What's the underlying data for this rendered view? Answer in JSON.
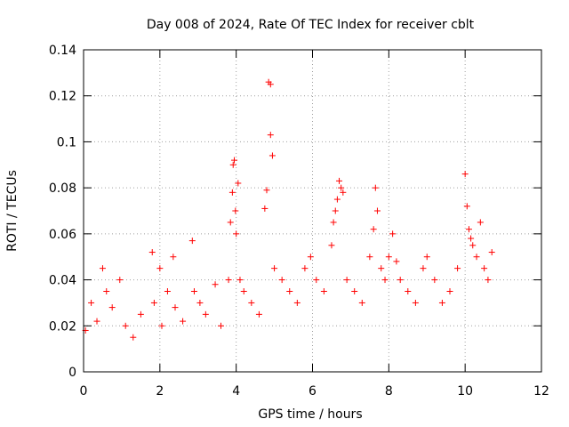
{
  "chart_data": {
    "type": "scatter",
    "title": "Day 008 of 2024, Rate Of TEC Index for receiver cblt",
    "xlabel": "GPS time / hours",
    "ylabel": "ROTI / TECUs",
    "xlim": [
      0,
      12
    ],
    "ylim": [
      0,
      0.14
    ],
    "xticks": [
      0,
      2,
      4,
      6,
      8,
      10,
      12
    ],
    "yticks": [
      0,
      0.02,
      0.04,
      0.06,
      0.08,
      0.1,
      0.12,
      0.14
    ],
    "xtick_labels": [
      "0",
      "2",
      "4",
      "6",
      "8",
      "10",
      "12"
    ],
    "ytick_labels": [
      "0",
      "0.02",
      "0.04",
      "0.06",
      "0.08",
      "0.1",
      "0.12",
      "0.14"
    ],
    "grid": true,
    "marker": "plus",
    "marker_color": "#ff0000",
    "series": [
      {
        "name": "ROTI",
        "x": [
          0.05,
          0.2,
          0.35,
          0.5,
          0.6,
          0.75,
          0.95,
          1.1,
          1.3,
          1.5,
          1.8,
          1.85,
          2.0,
          2.05,
          2.2,
          2.35,
          2.4,
          2.6,
          2.85,
          2.9,
          3.05,
          3.2,
          3.45,
          3.6,
          3.8,
          3.85,
          3.9,
          3.92,
          3.95,
          3.98,
          4.0,
          4.05,
          4.1,
          4.2,
          4.4,
          4.6,
          4.75,
          4.8,
          4.85,
          4.9,
          4.9,
          4.95,
          5.0,
          5.2,
          5.4,
          5.6,
          5.8,
          5.95,
          6.1,
          6.3,
          6.5,
          6.55,
          6.6,
          6.65,
          6.7,
          6.75,
          6.8,
          6.9,
          7.1,
          7.3,
          7.5,
          7.6,
          7.65,
          7.7,
          7.8,
          7.9,
          8.0,
          8.1,
          8.2,
          8.3,
          8.5,
          8.7,
          8.9,
          9.0,
          9.2,
          9.4,
          9.6,
          9.8,
          10.0,
          10.05,
          10.1,
          10.15,
          10.2,
          10.3,
          10.4,
          10.5,
          10.6,
          10.7
        ],
        "y": [
          0.018,
          0.03,
          0.022,
          0.045,
          0.035,
          0.028,
          0.04,
          0.02,
          0.015,
          0.025,
          0.052,
          0.03,
          0.045,
          0.02,
          0.035,
          0.05,
          0.028,
          0.022,
          0.057,
          0.035,
          0.03,
          0.025,
          0.038,
          0.02,
          0.04,
          0.065,
          0.078,
          0.09,
          0.092,
          0.07,
          0.06,
          0.082,
          0.04,
          0.035,
          0.03,
          0.025,
          0.071,
          0.079,
          0.126,
          0.125,
          0.103,
          0.094,
          0.045,
          0.04,
          0.035,
          0.03,
          0.045,
          0.05,
          0.04,
          0.035,
          0.055,
          0.065,
          0.07,
          0.075,
          0.083,
          0.08,
          0.078,
          0.04,
          0.035,
          0.03,
          0.05,
          0.062,
          0.08,
          0.07,
          0.045,
          0.04,
          0.05,
          0.06,
          0.048,
          0.04,
          0.035,
          0.03,
          0.045,
          0.05,
          0.04,
          0.03,
          0.035,
          0.045,
          0.086,
          0.072,
          0.062,
          0.058,
          0.055,
          0.05,
          0.065,
          0.045,
          0.04,
          0.052
        ]
      }
    ]
  }
}
